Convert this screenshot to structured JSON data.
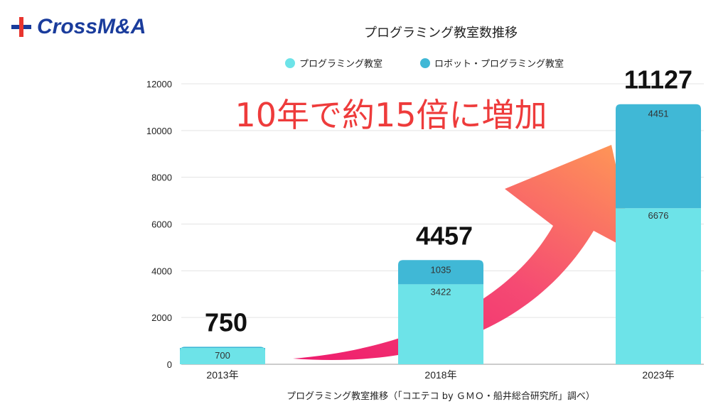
{
  "brand": {
    "name": "CrossM&A",
    "colors": {
      "blue": "#1a3c9c",
      "red": "#e8352f"
    }
  },
  "chart_data": {
    "type": "bar",
    "stacked": true,
    "title": "プログラミング教室数推移",
    "categories": [
      "2013年",
      "2018年",
      "2023年"
    ],
    "series": [
      {
        "name": "プログラミング教室",
        "values": [
          700,
          3422,
          6676
        ],
        "color": "#6de3e8"
      },
      {
        "name": "ロボット・プログラミング教室",
        "values": [
          50,
          1035,
          4451
        ],
        "color": "#40b8d6"
      }
    ],
    "totals": [
      "750",
      "4457",
      "11127"
    ],
    "segment_labels": [
      [
        "700",
        "3422",
        "6676"
      ],
      [
        "",
        "1035",
        "4451"
      ]
    ],
    "ylim": [
      0,
      12000
    ],
    "yticks": [
      0,
      2000,
      4000,
      6000,
      8000,
      10000,
      12000
    ],
    "grid": true,
    "legend_position": "top-center",
    "annotation": "10年で約15倍に増加",
    "source": "プログラミング教室推移（「コエテコ by ＧＭＯ・船井総合研究所」調べ）"
  }
}
